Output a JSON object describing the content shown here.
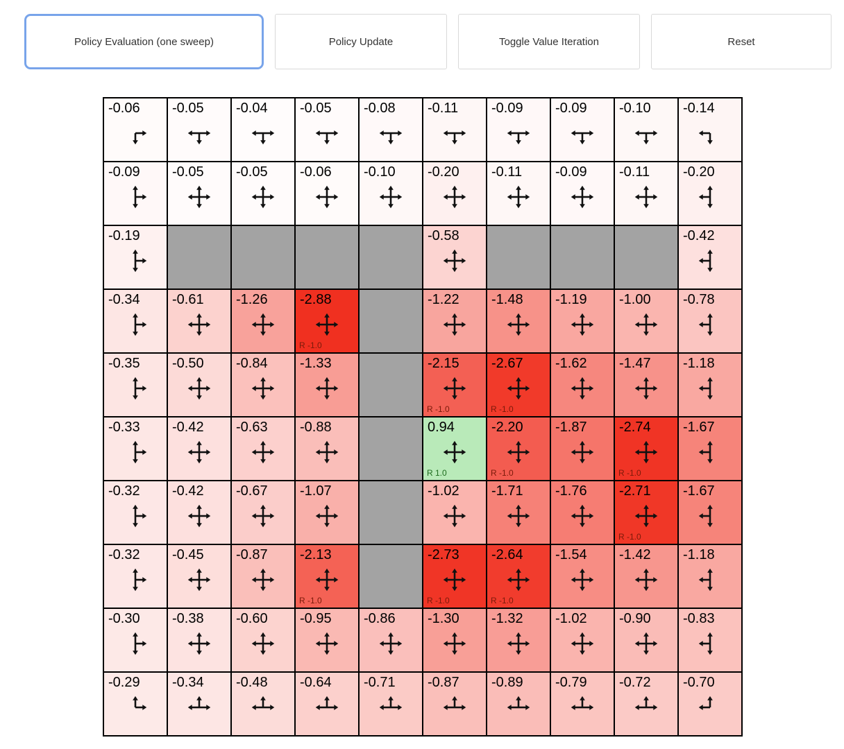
{
  "toolbar": {
    "buttons": [
      {
        "label": "Policy Evaluation (one sweep)",
        "active": true
      },
      {
        "label": "Policy Update",
        "active": false
      },
      {
        "label": "Toggle Value Iteration",
        "active": false
      },
      {
        "label": "Reset",
        "active": false
      }
    ]
  },
  "colors": {
    "wall": "#a3a3a3",
    "negative": "#f03020",
    "positive": "#2ebf2e",
    "reward_negative_text": "#7a1a0a",
    "reward_positive_text": "#1d6b1d",
    "active_button_border": "#78a4ea",
    "grid_border": "#000000",
    "arrow": "#111111",
    "value_scale_max": 2.8
  },
  "grid": {
    "rows": 10,
    "cols": 10,
    "cells": [
      [
        {
          "v": "-0.06",
          "d": "dr"
        },
        {
          "v": "-0.05",
          "d": "lrd"
        },
        {
          "v": "-0.04",
          "d": "lrd"
        },
        {
          "v": "-0.05",
          "d": "lrd"
        },
        {
          "v": "-0.08",
          "d": "lrd"
        },
        {
          "v": "-0.11",
          "d": "lrd"
        },
        {
          "v": "-0.09",
          "d": "lrd"
        },
        {
          "v": "-0.09",
          "d": "lrd"
        },
        {
          "v": "-0.10",
          "d": "lrd"
        },
        {
          "v": "-0.14",
          "d": "ld"
        }
      ],
      [
        {
          "v": "-0.09",
          "d": "udr"
        },
        {
          "v": "-0.05",
          "d": "udlr"
        },
        {
          "v": "-0.05",
          "d": "udlr"
        },
        {
          "v": "-0.06",
          "d": "udlr"
        },
        {
          "v": "-0.10",
          "d": "udlr"
        },
        {
          "v": "-0.20",
          "d": "udlr"
        },
        {
          "v": "-0.11",
          "d": "udlr"
        },
        {
          "v": "-0.09",
          "d": "udlr"
        },
        {
          "v": "-0.11",
          "d": "udlr"
        },
        {
          "v": "-0.20",
          "d": "udl"
        }
      ],
      [
        {
          "v": "-0.19",
          "d": "udr"
        },
        {
          "wall": true
        },
        {
          "wall": true
        },
        {
          "wall": true
        },
        {
          "wall": true
        },
        {
          "v": "-0.58",
          "d": "udlr"
        },
        {
          "wall": true
        },
        {
          "wall": true
        },
        {
          "wall": true
        },
        {
          "v": "-0.42",
          "d": "udl"
        }
      ],
      [
        {
          "v": "-0.34",
          "d": "udr"
        },
        {
          "v": "-0.61",
          "d": "udlr"
        },
        {
          "v": "-1.26",
          "d": "udlr"
        },
        {
          "v": "-2.88",
          "d": "udlr",
          "r": "R -1.0"
        },
        {
          "wall": true
        },
        {
          "v": "-1.22",
          "d": "udlr"
        },
        {
          "v": "-1.48",
          "d": "udlr"
        },
        {
          "v": "-1.19",
          "d": "udlr"
        },
        {
          "v": "-1.00",
          "d": "udlr"
        },
        {
          "v": "-0.78",
          "d": "udl"
        }
      ],
      [
        {
          "v": "-0.35",
          "d": "udr"
        },
        {
          "v": "-0.50",
          "d": "udlr"
        },
        {
          "v": "-0.84",
          "d": "udlr"
        },
        {
          "v": "-1.33",
          "d": "udlr"
        },
        {
          "wall": true
        },
        {
          "v": "-2.15",
          "d": "udlr",
          "r": "R -1.0"
        },
        {
          "v": "-2.67",
          "d": "udlr",
          "r": "R -1.0"
        },
        {
          "v": "-1.62",
          "d": "udlr"
        },
        {
          "v": "-1.47",
          "d": "udlr"
        },
        {
          "v": "-1.18",
          "d": "udl"
        }
      ],
      [
        {
          "v": "-0.33",
          "d": "udr"
        },
        {
          "v": "-0.42",
          "d": "udlr"
        },
        {
          "v": "-0.63",
          "d": "udlr"
        },
        {
          "v": "-0.88",
          "d": "udlr"
        },
        {
          "wall": true
        },
        {
          "v": "0.94",
          "d": "udlr",
          "r": "R 1.0"
        },
        {
          "v": "-2.20",
          "d": "udlr",
          "r": "R -1.0"
        },
        {
          "v": "-1.87",
          "d": "udlr"
        },
        {
          "v": "-2.74",
          "d": "udlr",
          "r": "R -1.0"
        },
        {
          "v": "-1.67",
          "d": "udl"
        }
      ],
      [
        {
          "v": "-0.32",
          "d": "udr"
        },
        {
          "v": "-0.42",
          "d": "udlr"
        },
        {
          "v": "-0.67",
          "d": "udlr"
        },
        {
          "v": "-1.07",
          "d": "udlr"
        },
        {
          "wall": true
        },
        {
          "v": "-1.02",
          "d": "udlr"
        },
        {
          "v": "-1.71",
          "d": "udlr"
        },
        {
          "v": "-1.76",
          "d": "udlr"
        },
        {
          "v": "-2.71",
          "d": "udlr",
          "r": "R -1.0"
        },
        {
          "v": "-1.67",
          "d": "udl"
        }
      ],
      [
        {
          "v": "-0.32",
          "d": "udr"
        },
        {
          "v": "-0.45",
          "d": "udlr"
        },
        {
          "v": "-0.87",
          "d": "udlr"
        },
        {
          "v": "-2.13",
          "d": "udlr",
          "r": "R -1.0"
        },
        {
          "wall": true
        },
        {
          "v": "-2.73",
          "d": "udlr",
          "r": "R -1.0"
        },
        {
          "v": "-2.64",
          "d": "udlr",
          "r": "R -1.0"
        },
        {
          "v": "-1.54",
          "d": "udlr"
        },
        {
          "v": "-1.42",
          "d": "udlr"
        },
        {
          "v": "-1.18",
          "d": "udl"
        }
      ],
      [
        {
          "v": "-0.30",
          "d": "udr"
        },
        {
          "v": "-0.38",
          "d": "udlr"
        },
        {
          "v": "-0.60",
          "d": "udlr"
        },
        {
          "v": "-0.95",
          "d": "udlr"
        },
        {
          "v": "-0.86",
          "d": "udlr"
        },
        {
          "v": "-1.30",
          "d": "udlr"
        },
        {
          "v": "-1.32",
          "d": "udlr"
        },
        {
          "v": "-1.02",
          "d": "udlr"
        },
        {
          "v": "-0.90",
          "d": "udlr"
        },
        {
          "v": "-0.83",
          "d": "udl"
        }
      ],
      [
        {
          "v": "-0.29",
          "d": "ur"
        },
        {
          "v": "-0.34",
          "d": "ulr"
        },
        {
          "v": "-0.48",
          "d": "ulr"
        },
        {
          "v": "-0.64",
          "d": "ulr"
        },
        {
          "v": "-0.71",
          "d": "ulr"
        },
        {
          "v": "-0.87",
          "d": "ulr"
        },
        {
          "v": "-0.89",
          "d": "ulr"
        },
        {
          "v": "-0.79",
          "d": "ulr"
        },
        {
          "v": "-0.72",
          "d": "ulr"
        },
        {
          "v": "-0.70",
          "d": "ul"
        }
      ]
    ]
  }
}
